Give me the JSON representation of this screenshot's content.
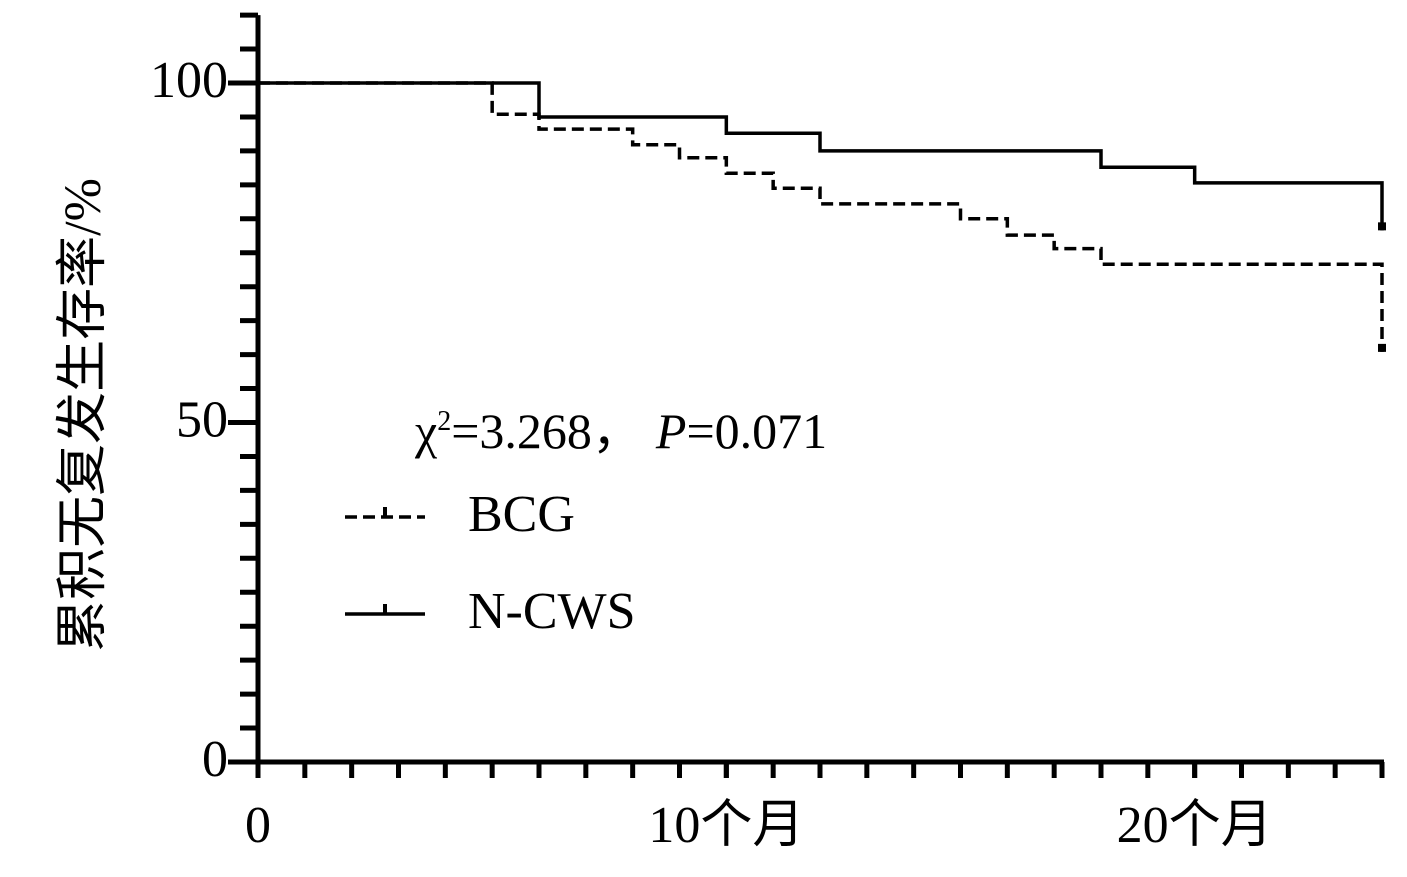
{
  "chart_data": {
    "type": "step",
    "y_label": "累积无复发生存率/%",
    "annotation": {
      "symbol": "χ",
      "superscript": "2",
      "stat": "=3.268，",
      "p_symbol": "P",
      "p_value": "=0.071"
    },
    "series": [
      {
        "name": "BCG",
        "color": "#000000",
        "dash": true,
        "x": [
          0,
          5,
          6,
          8,
          9,
          10,
          11,
          12,
          15,
          16,
          17,
          18,
          24
        ],
        "values": [
          100,
          95.4,
          93.2,
          90.9,
          89,
          86.7,
          84.5,
          82.2,
          80,
          77.6,
          75.6,
          73.3,
          60.4
        ]
      },
      {
        "name": "N-CWS",
        "color": "#000000",
        "dash": false,
        "x": [
          0,
          6,
          10,
          12,
          18,
          20,
          24
        ],
        "values": [
          100,
          95,
          92.6,
          90,
          87.6,
          85.3,
          78.3
        ]
      }
    ],
    "xlim": [
      0,
      24
    ],
    "ylim": [
      0,
      110
    ],
    "xticks": [
      0,
      {
        "value": 10,
        "label": "10个月"
      },
      {
        "value": 20,
        "label": "20个月"
      }
    ],
    "yticks": [
      0,
      50,
      100
    ],
    "x_minor_step": 1,
    "y_minor_step": 5,
    "legend": "center-left"
  }
}
